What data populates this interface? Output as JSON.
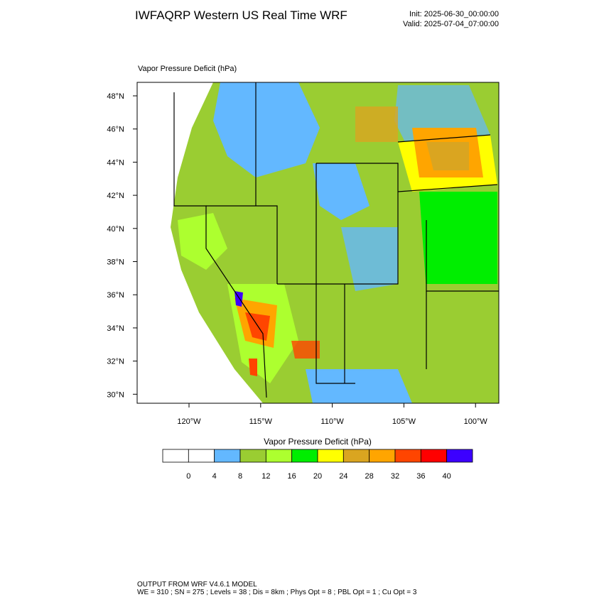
{
  "header": {
    "title": "IWFAQRP Western US Real Time WRF",
    "init": "Init: 2025-06-30_00:00:00",
    "valid": "Valid: 2025-07-04_07:00:00"
  },
  "plot": {
    "label": "Vapor Pressure Deficit   (hPa)",
    "lat_labels": [
      "48°N",
      "46°N",
      "44°N",
      "42°N",
      "40°N",
      "38°N",
      "36°N",
      "34°N",
      "32°N",
      "30°N"
    ],
    "lon_labels": [
      "120°W",
      "115°W",
      "110°W",
      "105°W",
      "100°W"
    ]
  },
  "colorbar": {
    "title": "Vapor Pressure Deficit  (hPa)",
    "ticks": [
      0,
      4,
      8,
      12,
      16,
      20,
      24,
      28,
      32,
      36,
      40
    ],
    "colors": [
      "#ffffff",
      "#ffffff",
      "#63b8ff",
      "#9acd32",
      "#adff2f",
      "#00ee00",
      "#ffff00",
      "#daa520",
      "#ffa500",
      "#ff4500",
      "#ff0000",
      "#3c00ff"
    ]
  },
  "footer": {
    "line1": "OUTPUT FROM WRF V4.6.1 MODEL",
    "line2": "WE = 310 ; SN = 275 ; Levels = 38 ; Dis = 8km ; Phys Opt = 8 ; PBL Opt = 1 ; Cu Opt = 3"
  }
}
